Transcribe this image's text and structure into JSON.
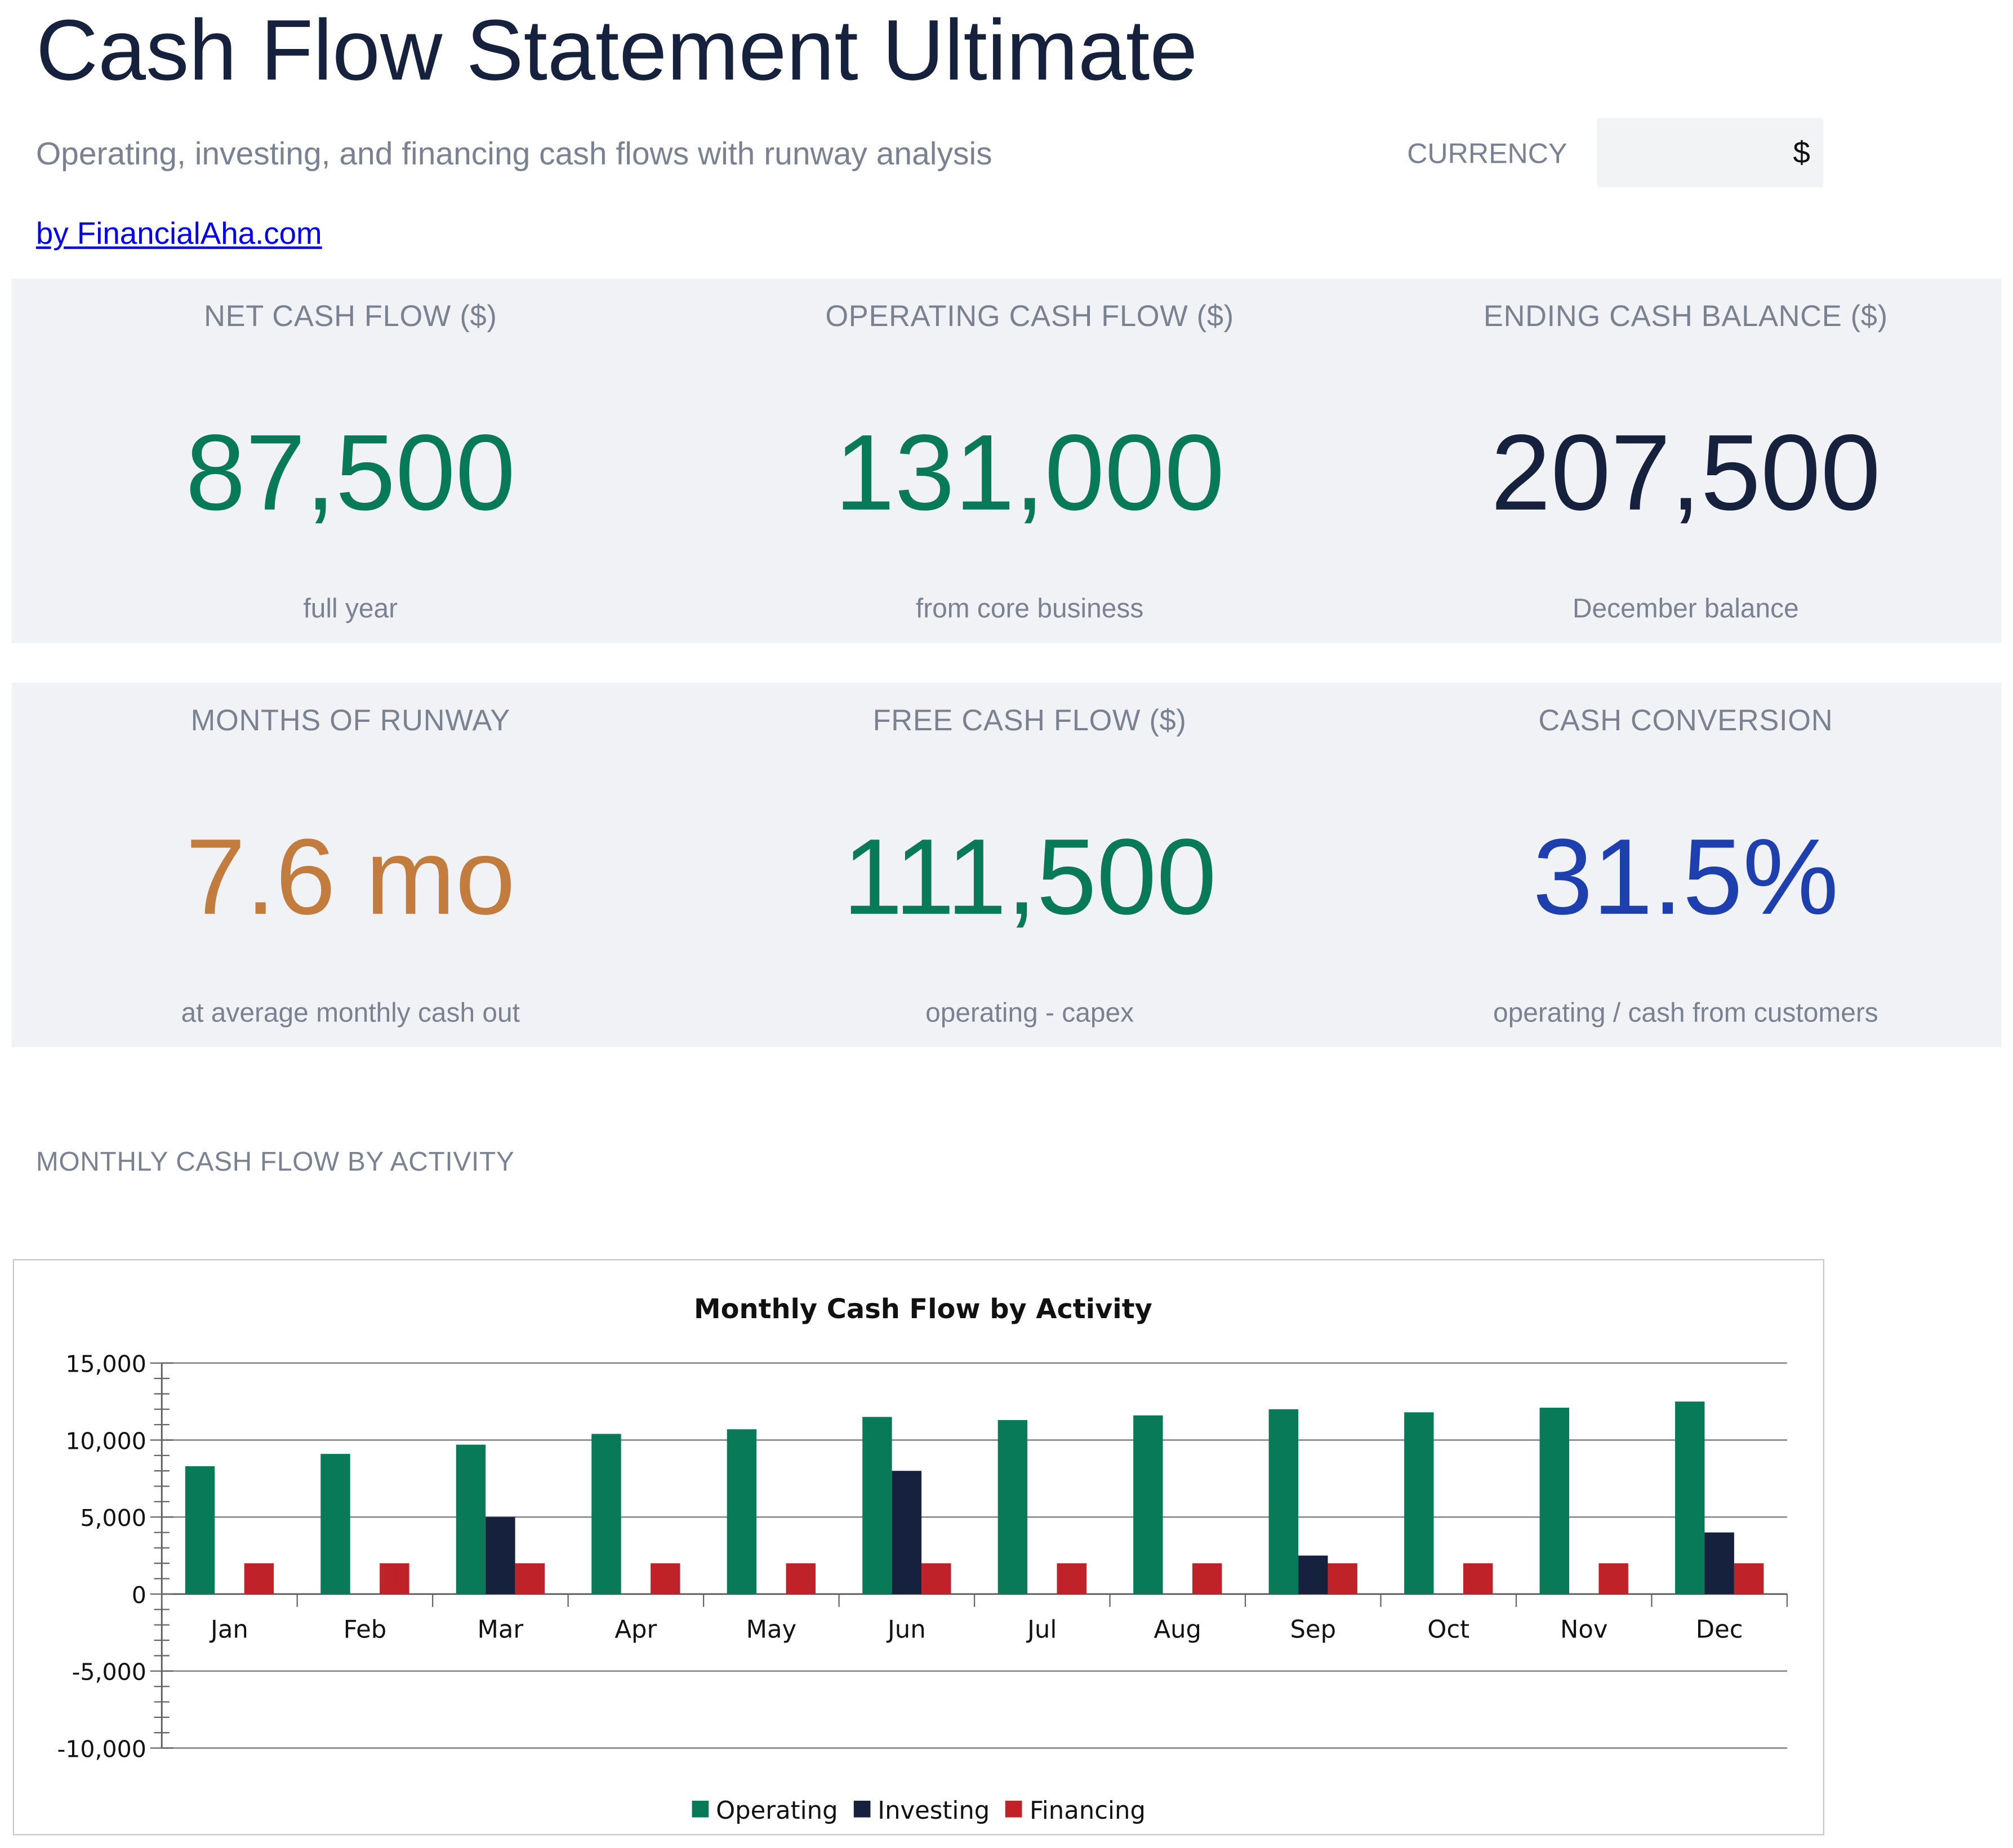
{
  "header": {
    "title": "Cash Flow Statement Ultimate",
    "subtitle": "Operating, investing, and financing cash flows with runway analysis",
    "byline": "by FinancialAha.com",
    "currency_label": "CURRENCY",
    "currency_value": "$"
  },
  "kpis_row1": [
    {
      "label": "NET CASH FLOW ($)",
      "value": "87,500",
      "sub": "full year",
      "color": "#087a57"
    },
    {
      "label": "OPERATING CASH FLOW ($)",
      "value": "131,000",
      "sub": "from core business",
      "color": "#087a57"
    },
    {
      "label": "ENDING CASH BALANCE ($)",
      "value": "207,500",
      "sub": "December balance",
      "color": "#16213e"
    }
  ],
  "kpis_row2": [
    {
      "label": "MONTHS OF RUNWAY",
      "value": "7.6 mo",
      "sub": "at average monthly cash out",
      "color": "#c27c3e"
    },
    {
      "label": "FREE CASH FLOW ($)",
      "value": "111,500",
      "sub": "operating - capex",
      "color": "#087a57"
    },
    {
      "label": "CASH CONVERSION",
      "value": "31.5%",
      "sub": "operating / cash from customers",
      "color": "#1e40af"
    }
  ],
  "section": {
    "title": "MONTHLY CASH FLOW BY ACTIVITY"
  },
  "chart_data": {
    "type": "bar",
    "title": "Monthly Cash Flow by Activity",
    "xlabel": "",
    "ylabel": "",
    "categories": [
      "Jan",
      "Feb",
      "Mar",
      "Apr",
      "May",
      "Jun",
      "Jul",
      "Aug",
      "Sep",
      "Oct",
      "Nov",
      "Dec"
    ],
    "series": [
      {
        "name": "Operating",
        "color": "#087a57",
        "values": [
          8300,
          9100,
          9700,
          10400,
          10700,
          11500,
          11300,
          11600,
          12000,
          11800,
          12100,
          12500
        ]
      },
      {
        "name": "Investing",
        "color": "#16213e",
        "values": [
          0,
          0,
          5000,
          0,
          0,
          8000,
          0,
          0,
          2500,
          0,
          0,
          4000
        ]
      },
      {
        "name": "Financing",
        "color": "#c0222a",
        "values": [
          2000,
          2000,
          2000,
          2000,
          2000,
          2000,
          2000,
          2000,
          2000,
          2000,
          2000,
          2000
        ]
      }
    ],
    "ylim": [
      -10000,
      15000
    ],
    "yticks": [
      15000,
      10000,
      5000,
      0,
      -5000,
      -10000
    ],
    "ytick_labels": [
      "15,000",
      "10,000",
      "5,000",
      "0",
      "-5,000",
      "-10,000"
    ],
    "grid": true,
    "legend_position": "bottom"
  }
}
